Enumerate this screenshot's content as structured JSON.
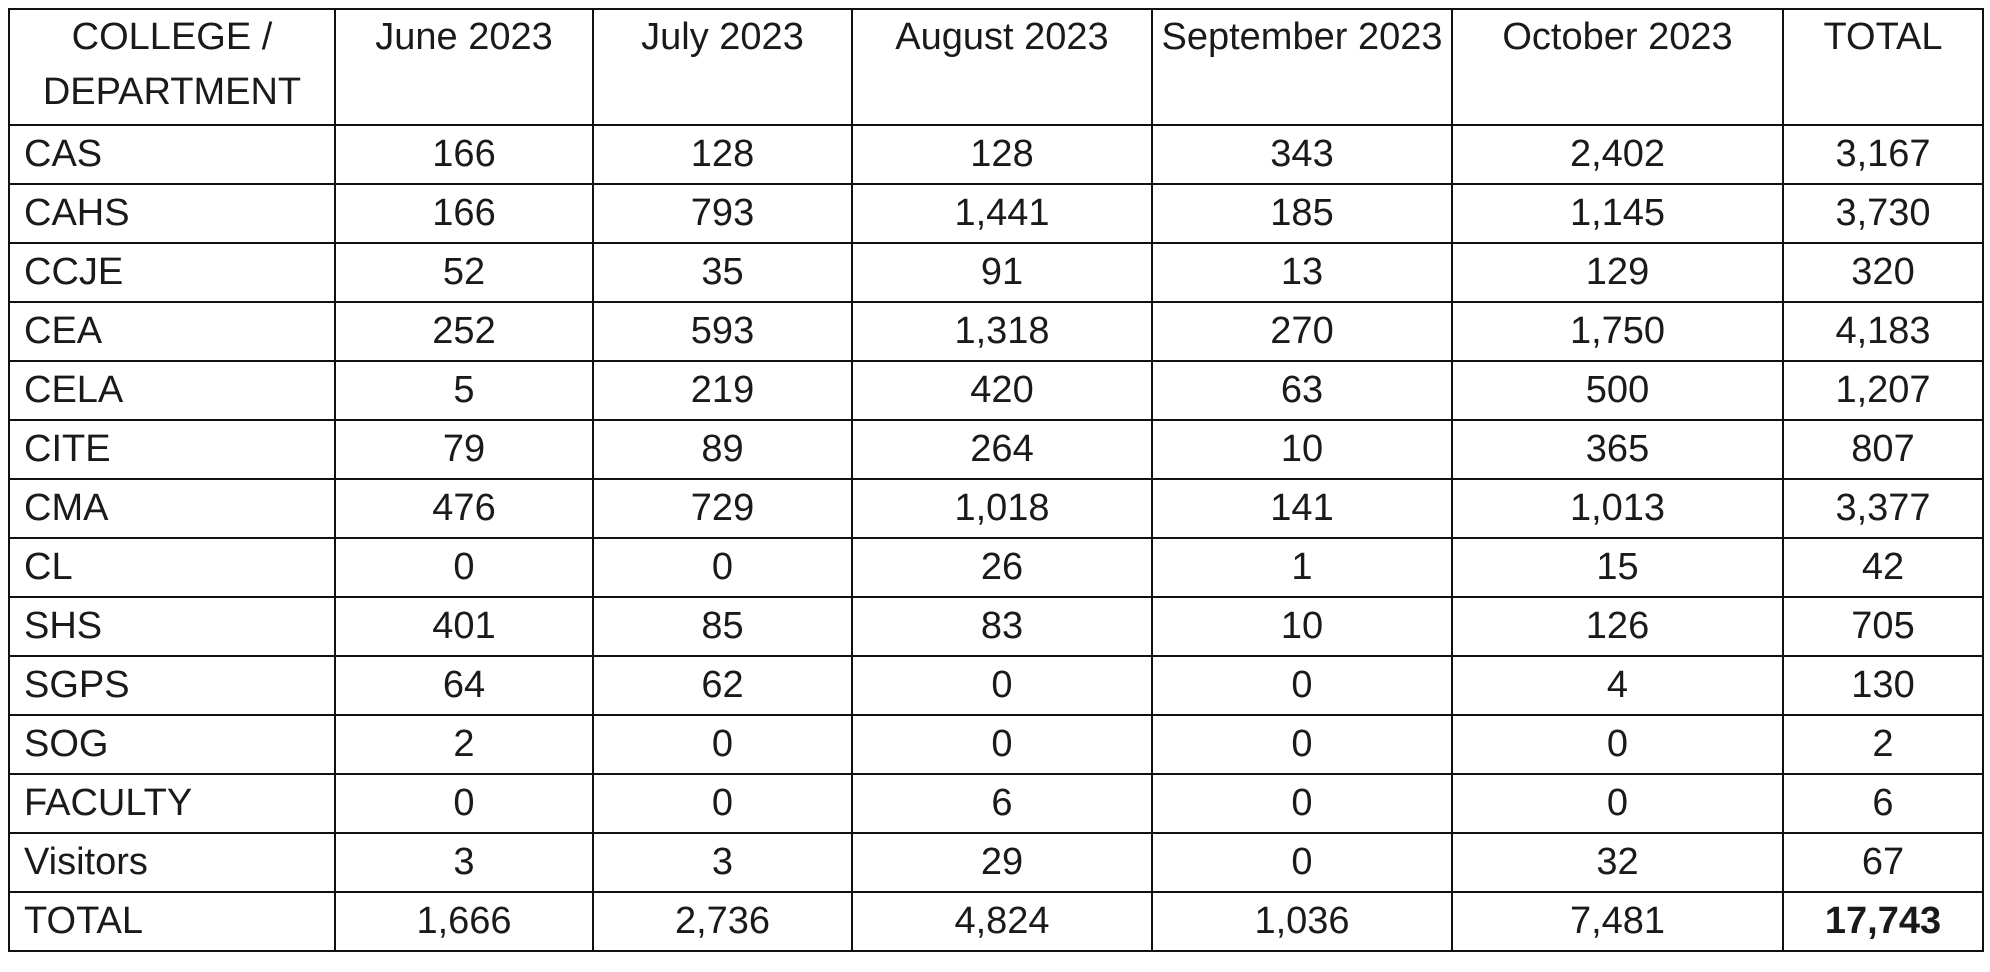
{
  "table": {
    "headers": [
      "COLLEGE / DEPARTMENT",
      "June 2023",
      "July 2023",
      "August 2023",
      "September 2023",
      "October 2023",
      "TOTAL"
    ],
    "rows": [
      {
        "department": "CAS",
        "values": [
          "166",
          "128",
          "128",
          "343",
          "2,402",
          "3,167"
        ]
      },
      {
        "department": "CAHS",
        "values": [
          "166",
          "793",
          "1,441",
          "185",
          "1,145",
          "3,730"
        ]
      },
      {
        "department": "CCJE",
        "values": [
          "52",
          "35",
          "91",
          "13",
          "129",
          "320"
        ]
      },
      {
        "department": "CEA",
        "values": [
          "252",
          "593",
          "1,318",
          "270",
          "1,750",
          "4,183"
        ]
      },
      {
        "department": "CELA",
        "values": [
          "5",
          "219",
          "420",
          "63",
          "500",
          "1,207"
        ]
      },
      {
        "department": "CITE",
        "values": [
          "79",
          "89",
          "264",
          "10",
          "365",
          "807"
        ]
      },
      {
        "department": "CMA",
        "values": [
          "476",
          "729",
          "1,018",
          "141",
          "1,013",
          "3,377"
        ]
      },
      {
        "department": "CL",
        "values": [
          "0",
          "0",
          "26",
          "1",
          "15",
          "42"
        ]
      },
      {
        "department": "SHS",
        "values": [
          "401",
          "85",
          "83",
          "10",
          "126",
          "705"
        ]
      },
      {
        "department": "SGPS",
        "values": [
          "64",
          "62",
          "0",
          "0",
          "4",
          "130"
        ]
      },
      {
        "department": "SOG",
        "values": [
          "2",
          "0",
          "0",
          "0",
          "0",
          "2"
        ]
      },
      {
        "department": "FACULTY",
        "values": [
          "0",
          "0",
          "6",
          "0",
          "0",
          "6"
        ]
      },
      {
        "department": "Visitors",
        "values": [
          "3",
          "3",
          "29",
          "0",
          "32",
          "67"
        ]
      }
    ],
    "totals": {
      "label": "TOTAL",
      "values": [
        "1,666",
        "2,736",
        "4,824",
        "1,036",
        "7,481",
        "17,743"
      ]
    }
  }
}
